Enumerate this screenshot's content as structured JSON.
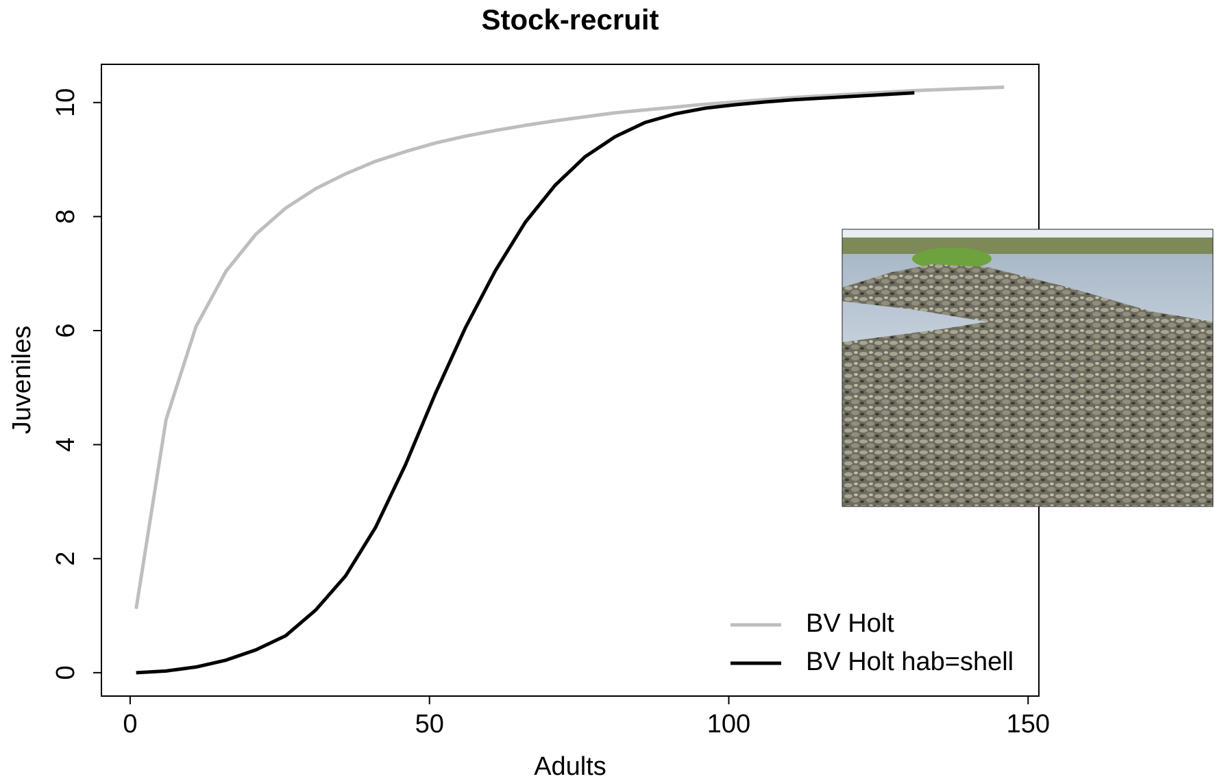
{
  "chart_data": {
    "type": "line",
    "title": "Stock-recruit",
    "x_label": "Adults",
    "y_label": "Juveniles",
    "xlim": [
      -4.8,
      151.8
    ],
    "xticks": [
      0,
      50,
      100,
      150
    ],
    "ylim": [
      -0.41,
      10.67
    ],
    "yticks": [
      0,
      2,
      4,
      6,
      8,
      10
    ],
    "grid": false,
    "legend_position": "bottom-right",
    "series": [
      {
        "name": "BV Holt",
        "color": "#bebebe",
        "x": [
          1,
          6,
          11,
          16,
          21,
          26,
          31,
          36,
          41,
          46,
          51,
          56,
          61,
          66,
          71,
          76,
          81,
          86,
          91,
          96,
          101,
          106,
          111,
          116,
          121,
          126,
          131,
          136,
          141,
          146
        ],
        "values": [
          1.12,
          4.44,
          6.07,
          7.04,
          7.69,
          8.15,
          8.49,
          8.75,
          8.97,
          9.14,
          9.29,
          9.41,
          9.51,
          9.6,
          9.68,
          9.75,
          9.82,
          9.87,
          9.92,
          9.97,
          10.01,
          10.05,
          10.09,
          10.12,
          10.15,
          10.18,
          10.21,
          10.23,
          10.25,
          10.27
        ]
      },
      {
        "name": "BV Holt hab=shell",
        "color": "#000000",
        "x": [
          1,
          6,
          11,
          16,
          21,
          26,
          31,
          36,
          41,
          46,
          51,
          56,
          61,
          66,
          71,
          76,
          81,
          86,
          91,
          96,
          101,
          106,
          111,
          116,
          121,
          126,
          131
        ],
        "values": [
          0,
          0.03,
          0.1,
          0.22,
          0.4,
          0.65,
          1.1,
          1.7,
          2.55,
          3.65,
          4.9,
          6.05,
          7.05,
          7.9,
          8.55,
          9.05,
          9.4,
          9.65,
          9.8,
          9.9,
          9.96,
          10.01,
          10.05,
          10.08,
          10.11,
          10.14,
          10.17
        ]
      }
    ]
  }
}
